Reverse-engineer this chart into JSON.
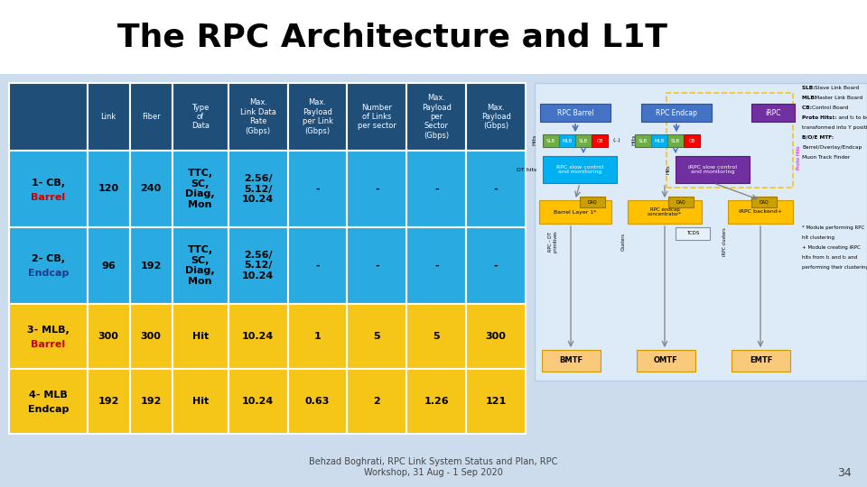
{
  "title": "The RPC Architecture and L1T",
  "title_fontsize": 26,
  "bg_color": "#ccdcec",
  "header_bg": "#1f4e79",
  "header_text_color": "#ffffff",
  "col_headers": [
    "",
    "Link",
    "Fiber",
    "Type\nof\nData",
    "Max.\nLink Data\nRate\n(Gbps)",
    "Max.\nPayload\nper Link\n(Gbps)",
    "Number\nof Links\nper sector",
    "Max.\nPayload\nper\nSector\n(Gbps)",
    "Max.\nPayload\n(Gbps)"
  ],
  "rows": [
    {
      "label_line1": "1- CB,",
      "label_line2": "Barrel",
      "label_color1": "#000000",
      "label_color2": "#cc0000",
      "link": "120",
      "fiber": "240",
      "type": "TTC,\nSC,\nDiag,\nMon",
      "max_rate": "2.56/\n5.12/\n10.24",
      "max_payload_link": "-",
      "num_links": "-",
      "max_payload_sector": "-",
      "max_payload": "-",
      "bg": "#29abe2"
    },
    {
      "label_line1": "2- CB,",
      "label_line2": "Endcap",
      "label_color1": "#000000",
      "label_color2": "#1e3a8a",
      "link": "96",
      "fiber": "192",
      "type": "TTC,\nSC,\nDiag,\nMon",
      "max_rate": "2.56/\n5.12/\n10.24",
      "max_payload_link": "-",
      "num_links": "-",
      "max_payload_sector": "-",
      "max_payload": "-",
      "bg": "#29abe2"
    },
    {
      "label_line1": "3- MLB,",
      "label_line2": "Barrel",
      "label_color1": "#000000",
      "label_color2": "#cc0000",
      "link": "300",
      "fiber": "300",
      "type": "Hit",
      "max_rate": "10.24",
      "max_payload_link": "1",
      "num_links": "5",
      "max_payload_sector": "5",
      "max_payload": "300",
      "bg": "#f5c518"
    },
    {
      "label_line1": "4- MLB",
      "label_line2": "Endcap",
      "label_color1": "#000000",
      "label_color2": "#000000",
      "link": "192",
      "fiber": "192",
      "type": "Hit",
      "max_rate": "10.24",
      "max_payload_link": "0.63",
      "num_links": "2",
      "max_payload_sector": "1.26",
      "max_payload": "121",
      "bg": "#f5c518"
    }
  ],
  "footer_text": "Behzad Boghrati, RPC Link System Status and Plan, RPC\nWorkshop, 31 Aug - 1 Sep 2020",
  "page_number": "34"
}
